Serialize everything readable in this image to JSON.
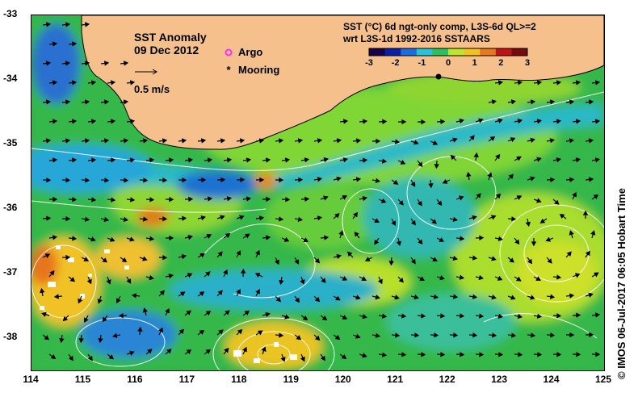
{
  "map": {
    "title_line1": "SST Anomaly",
    "title_line2": "09 Dec 2012",
    "vector_scale_label": "0.5 m/s",
    "legend": [
      {
        "label": "Argo",
        "color": "#ff2bff",
        "symbol": "circle"
      },
      {
        "label": "Mooring",
        "color": "#000000",
        "symbol": "star"
      }
    ],
    "colorbar": {
      "title_line1": "SST (°C) 6d ngt-only comp, L3S-6d QL>=2",
      "title_line2": "wrt L3S-1d 1992-2016 SSTAARS",
      "ticks": [
        "-3",
        "-2",
        "-1",
        "0",
        "1",
        "2",
        "3"
      ],
      "range": [
        -3,
        3
      ],
      "colors": [
        "#18004a",
        "#0a1fa8",
        "#1a6de0",
        "#27c3d9",
        "#2cc25a",
        "#bde62a",
        "#f3c21c",
        "#e8781a",
        "#c01414",
        "#7a0a0a"
      ]
    },
    "x_ticks": [
      "114",
      "115",
      "116",
      "117",
      "118",
      "119",
      "120",
      "121",
      "122",
      "123",
      "124",
      "125"
    ],
    "y_ticks": [
      "-33",
      "-34",
      "-35",
      "-36",
      "-37",
      "-38"
    ],
    "x_range": [
      114,
      125
    ],
    "y_range": [
      -38.5,
      -33
    ],
    "credit": "© IMOS 06-Jul-2017 06:05 Hobart Time",
    "land_color": "#f6c08c",
    "background_color": "#2fb34a"
  }
}
